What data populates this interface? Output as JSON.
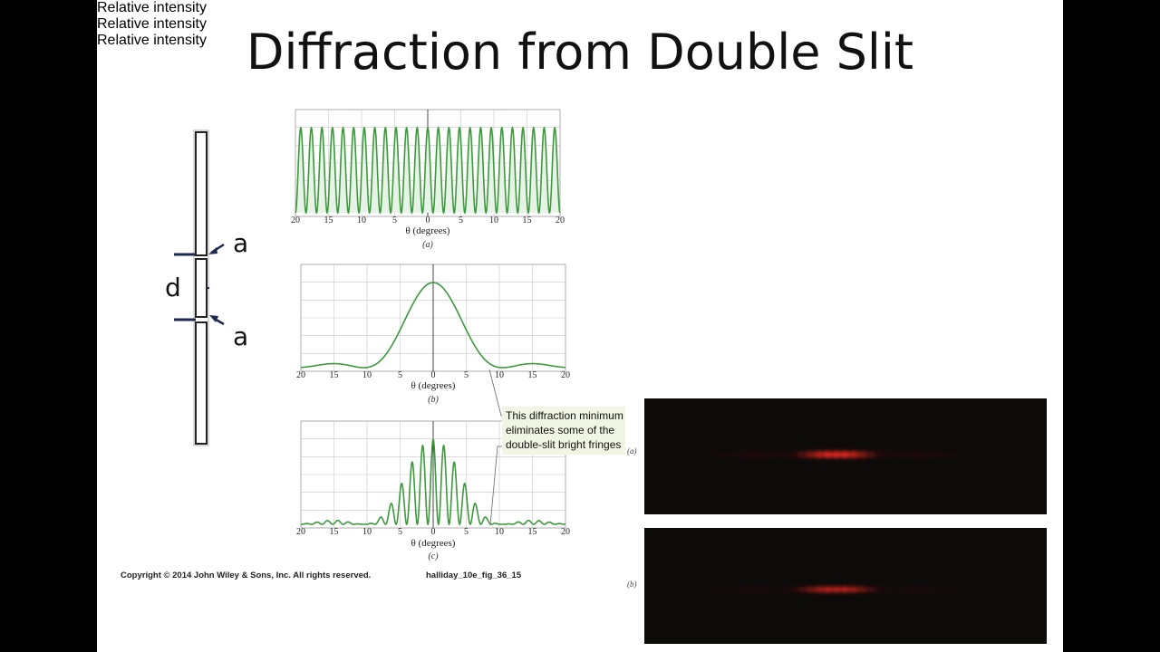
{
  "slide": {
    "title": "Diffraction from Double Slit"
  },
  "slit_diagram": {
    "label_d": "d",
    "label_a_top": "a",
    "label_a_bottom": "a"
  },
  "plots": [
    {
      "panel": "(a)",
      "panel_label": "Relative intensity",
      "x_label": "θ (degrees)",
      "x_ticks": [
        "20",
        "15",
        "10",
        "5",
        "0",
        "5",
        "10",
        "15",
        "20"
      ]
    },
    {
      "panel": "(b)",
      "panel_label": "Relative intensity",
      "x_label": "θ (degrees)",
      "x_ticks": [
        "20",
        "15",
        "10",
        "5",
        "0",
        "5",
        "10",
        "15",
        "20"
      ]
    },
    {
      "panel": "(c)",
      "panel_label": "Relative intensity",
      "x_label": "θ (degrees)",
      "x_ticks": [
        "20",
        "15",
        "10",
        "5",
        "0",
        "5",
        "10",
        "15",
        "20"
      ]
    }
  ],
  "annotation": {
    "line1": "This diffraction minimum",
    "line2": "eliminates some of the",
    "line3": "double-slit bright fringes"
  },
  "photos": [
    {
      "label": "(a)"
    },
    {
      "label": "(b)"
    }
  ],
  "footer": {
    "copyright": "Copyright © 2014 John Wiley & Sons, Inc. All rights reserved.",
    "figure_id": "halliday_10e_fig_36_15"
  },
  "colors": {
    "curve": "#3c9a3c",
    "grid": "#c8c8c8",
    "slit_bar": "#1c2a55",
    "fringe": "#e0261a"
  }
}
